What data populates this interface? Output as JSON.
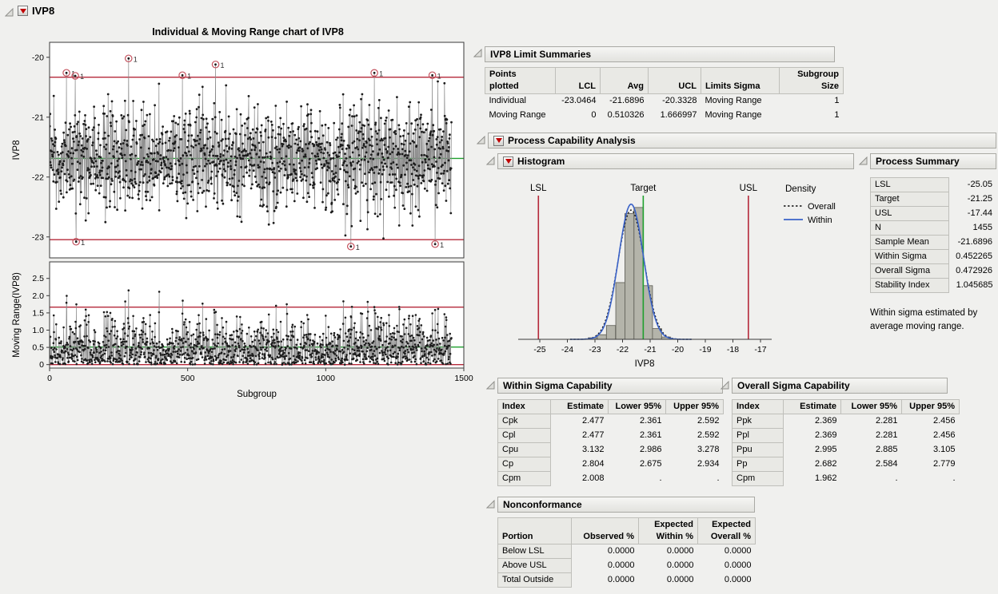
{
  "outline_title": "IVP8",
  "limit_summaries": {
    "title": "IVP8 Limit Summaries",
    "headers": [
      "Points\nplotted",
      "LCL",
      "Avg",
      "UCL",
      "Limits Sigma",
      "Subgroup\nSize"
    ],
    "rows": [
      [
        "Individual",
        "-23.0464",
        "-21.6896",
        "-20.3328",
        "Moving Range",
        "1"
      ],
      [
        "Moving Range",
        "0",
        "0.510326",
        "1.666997",
        "Moving Range",
        "1"
      ]
    ]
  },
  "process_capability": {
    "title": "Process Capability Analysis"
  },
  "histogram_section": {
    "title": "Histogram"
  },
  "process_summary": {
    "title": "Process Summary",
    "rows": [
      [
        "LSL",
        "-25.05"
      ],
      [
        "Target",
        "-21.25"
      ],
      [
        "USL",
        "-17.44"
      ],
      [
        "N",
        "1455"
      ],
      [
        "Sample Mean",
        "-21.6896"
      ],
      [
        "Within Sigma",
        "0.452265"
      ],
      [
        "Overall Sigma",
        "0.472926"
      ],
      [
        "Stability Index",
        "1.045685"
      ]
    ],
    "note": "Within sigma estimated by average moving range."
  },
  "within_capability": {
    "title": "Within Sigma Capability",
    "headers": [
      "Index",
      "Estimate",
      "Lower 95%",
      "Upper 95%"
    ],
    "rows": [
      [
        "Cpk",
        "2.477",
        "2.361",
        "2.592"
      ],
      [
        "Cpl",
        "2.477",
        "2.361",
        "2.592"
      ],
      [
        "Cpu",
        "3.132",
        "2.986",
        "3.278"
      ],
      [
        "Cp",
        "2.804",
        "2.675",
        "2.934"
      ],
      [
        "Cpm",
        "2.008",
        ".",
        "."
      ]
    ]
  },
  "overall_capability": {
    "title": "Overall Sigma Capability",
    "headers": [
      "Index",
      "Estimate",
      "Lower 95%",
      "Upper 95%"
    ],
    "rows": [
      [
        "Ppk",
        "2.369",
        "2.281",
        "2.456"
      ],
      [
        "Ppl",
        "2.369",
        "2.281",
        "2.456"
      ],
      [
        "Ppu",
        "2.995",
        "2.885",
        "3.105"
      ],
      [
        "Pp",
        "2.682",
        "2.584",
        "2.779"
      ],
      [
        "Cpm",
        "1.962",
        ".",
        "."
      ]
    ]
  },
  "nonconformance": {
    "title": "Nonconformance",
    "headers": [
      "Portion",
      "Observed %",
      "Expected\nWithin %",
      "Expected\nOverall %"
    ],
    "rows": [
      [
        "Below LSL",
        "0.0000",
        "0.0000",
        "0.0000"
      ],
      [
        "Above USL",
        "0.0000",
        "0.0000",
        "0.0000"
      ],
      [
        "Total Outside",
        "0.0000",
        "0.0000",
        "0.0000"
      ]
    ]
  },
  "chart_data": [
    {
      "type": "line",
      "name": "individual-control-chart",
      "title": "Individual & Moving Range chart of IVP8",
      "xlabel": "Subgroup",
      "ylabel": "IVP8",
      "xlim": [
        0,
        1500
      ],
      "ylim": [
        -23.35,
        -19.75
      ],
      "xticks": [
        0,
        500,
        1000,
        1500
      ],
      "yticks": [
        -20,
        -21,
        -22,
        -23
      ],
      "n_points": 1455,
      "mean": -21.6896,
      "sigma": 0.452265,
      "lcl": -23.0464,
      "center": -21.6896,
      "ucl": -20.3328,
      "outliers": [
        [
          60,
          -20.26
        ],
        [
          92,
          -20.31
        ],
        [
          285,
          -20.02
        ],
        [
          480,
          -20.3
        ],
        [
          600,
          -20.12
        ],
        [
          1385,
          -20.3
        ],
        [
          95,
          -23.08
        ],
        [
          1090,
          -23.16
        ],
        [
          1395,
          -23.12
        ]
      ],
      "outlier_flag_label": "1",
      "colors": {
        "limit": "#b5293a",
        "center": "#1fa02e",
        "point": "#1c1c1c",
        "needle": "#8a8a8a",
        "flag_ring": "#c4525e"
      }
    },
    {
      "type": "line",
      "name": "moving-range-chart",
      "ylabel": "Moving Range(IVP8)",
      "ylim": [
        -0.1,
        2.98
      ],
      "yticks": [
        2.5,
        2.0,
        1.5,
        1.0,
        0.5,
        0
      ],
      "lcl": 0,
      "center": 0.510326,
      "ucl": 1.666997,
      "derived": "absolute difference of successive individual values"
    },
    {
      "type": "histogram",
      "name": "capability-histogram",
      "xlabel": "IVP8",
      "xticks": [
        -25,
        -24,
        -23,
        -22,
        -21,
        -20,
        -19,
        -18,
        -17
      ],
      "lsl": -25.05,
      "target": -21.25,
      "usl": -17.44,
      "line_labels": {
        "lsl": "LSL",
        "target": "Target",
        "usl": "USL"
      },
      "mean": -21.6896,
      "within_sigma": 0.452265,
      "overall_sigma": 0.472926,
      "bin_width": 0.3333,
      "bin_centers": [
        -23.08,
        -22.75,
        -22.42,
        -22.08,
        -21.75,
        -21.42,
        -21.08,
        -20.75,
        -20.42
      ],
      "bin_densities": [
        0.01,
        0.03,
        0.09,
        0.37,
        0.82,
        0.86,
        0.35,
        0.07,
        0.015
      ],
      "legend": {
        "title": "Density",
        "entries": [
          {
            "label": "Overall",
            "style": "dotted"
          },
          {
            "label": "Within",
            "style": "solid"
          }
        ]
      },
      "colors": {
        "spec": "#b5293a",
        "target": "#1fa02e",
        "bar_fill": "#b4b4aa",
        "bar_stroke": "#5a5a52",
        "within": "#3a62c8",
        "overall": "#101010"
      }
    }
  ]
}
